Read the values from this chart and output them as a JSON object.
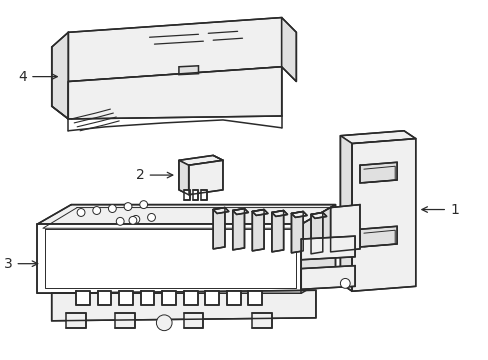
{
  "background_color": "#ffffff",
  "line_color": "#2a2a2a",
  "line_width": 1.1,
  "figsize": [
    4.89,
    3.6
  ],
  "dpi": 100,
  "label_fontsize": 10
}
